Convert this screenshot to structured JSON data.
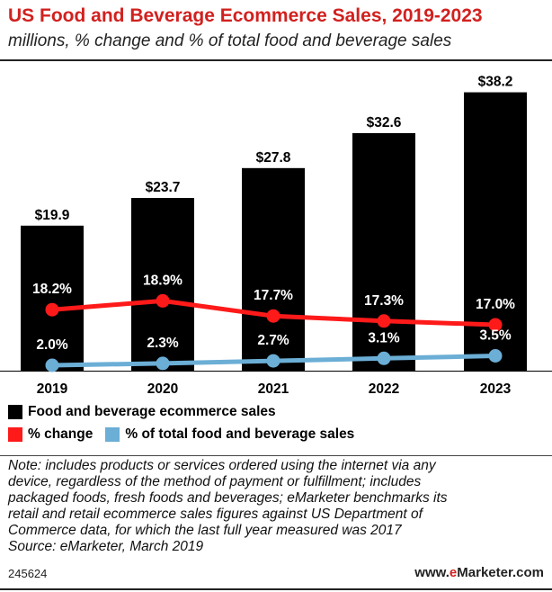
{
  "title": "US Food and Beverage Ecommerce Sales, 2019-2023",
  "subtitle": "millions, % change and % of total food and beverage sales",
  "chart_data": {
    "type": "bar",
    "categories": [
      "2019",
      "2020",
      "2021",
      "2022",
      "2023"
    ],
    "series": [
      {
        "name": "Food and beverage ecommerce sales",
        "type": "bar",
        "values": [
          19.9,
          23.7,
          27.8,
          32.6,
          38.2
        ],
        "labels": [
          "$19.9",
          "$23.7",
          "$27.8",
          "$32.6",
          "$38.2"
        ],
        "color": "#000000"
      },
      {
        "name": "% change",
        "type": "line",
        "values": [
          18.2,
          18.9,
          17.7,
          17.3,
          17.0
        ],
        "labels": [
          "18.2%",
          "18.9%",
          "17.7%",
          "17.3%",
          "17.0%"
        ],
        "color": "#ff1a1a"
      },
      {
        "name": "% of total food and beverage sales",
        "type": "line",
        "values": [
          2.0,
          2.3,
          2.7,
          3.1,
          3.5
        ],
        "labels": [
          "2.0%",
          "2.3%",
          "2.7%",
          "3.1%",
          "3.5%"
        ],
        "color": "#6baed6"
      }
    ],
    "ylim": [
      0,
      40
    ],
    "legend_position": "bottom"
  },
  "note_lines": [
    "Note: includes products or services ordered using the internet via any",
    "device, regardless of the method of payment or fulfillment; includes",
    "packaged foods, fresh foods and beverages; eMarketer benchmarks its",
    "retail and retail ecommerce sales figures against US Department of",
    "Commerce data, for which the last full year measured was 2017",
    "Source: eMarketer, March 2019"
  ],
  "footer": {
    "chart_id": "245624",
    "brand_prefix": "www.",
    "brand_highlight": "e",
    "brand_rest": "Marketer",
    "brand_suffix": ".com"
  }
}
